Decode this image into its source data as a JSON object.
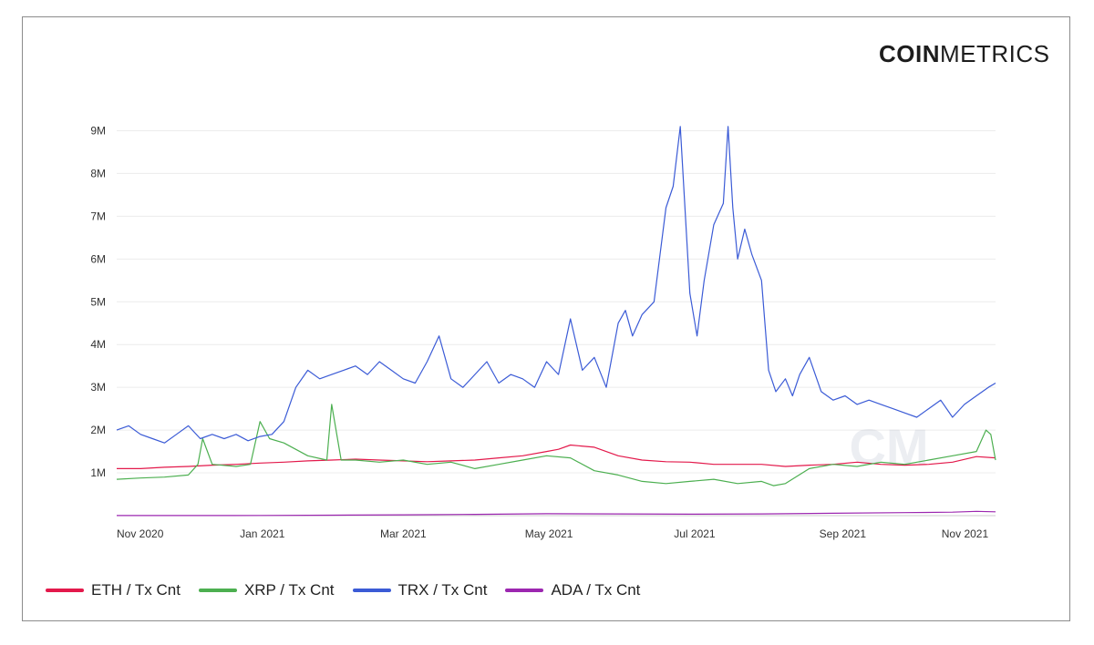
{
  "logo": {
    "bold": "COIN",
    "light": "METRICS"
  },
  "chart_data": {
    "type": "line",
    "title": "",
    "xlabel": "",
    "ylabel": "",
    "ylim": [
      0,
      9500000
    ],
    "y_ticks": [
      {
        "value": 1000000,
        "label": "1M"
      },
      {
        "value": 2000000,
        "label": "2M"
      },
      {
        "value": 3000000,
        "label": "3M"
      },
      {
        "value": 4000000,
        "label": "4M"
      },
      {
        "value": 5000000,
        "label": "5M"
      },
      {
        "value": 6000000,
        "label": "6M"
      },
      {
        "value": 7000000,
        "label": "7M"
      },
      {
        "value": 8000000,
        "label": "8M"
      },
      {
        "value": 9000000,
        "label": "9M"
      }
    ],
    "x_ticks": [
      "Nov 2020",
      "Jan 2021",
      "Mar 2021",
      "May 2021",
      "Jul 2021",
      "Sep 2021",
      "Nov 2021"
    ],
    "x_tick_days": [
      0,
      61,
      120,
      181,
      242,
      304,
      365
    ],
    "x_range_days": [
      0,
      368
    ],
    "series": [
      {
        "name": "ETH / Tx Cnt",
        "color": "#e3194b",
        "x_days": [
          0,
          10,
          20,
          30,
          40,
          50,
          60,
          70,
          80,
          90,
          100,
          110,
          120,
          130,
          140,
          150,
          160,
          170,
          180,
          185,
          190,
          200,
          210,
          220,
          230,
          240,
          250,
          260,
          270,
          280,
          290,
          300,
          310,
          320,
          330,
          340,
          350,
          360,
          368
        ],
        "values": [
          1100000,
          1100000,
          1130000,
          1150000,
          1180000,
          1200000,
          1230000,
          1250000,
          1280000,
          1300000,
          1320000,
          1300000,
          1280000,
          1260000,
          1280000,
          1300000,
          1350000,
          1400000,
          1500000,
          1550000,
          1650000,
          1600000,
          1400000,
          1300000,
          1260000,
          1250000,
          1200000,
          1200000,
          1200000,
          1150000,
          1180000,
          1200000,
          1250000,
          1200000,
          1180000,
          1200000,
          1250000,
          1380000,
          1350000
        ]
      },
      {
        "name": "XRP / Tx Cnt",
        "color": "#4caf50",
        "x_days": [
          0,
          10,
          20,
          30,
          34,
          36,
          40,
          50,
          56,
          60,
          64,
          70,
          80,
          88,
          90,
          94,
          100,
          110,
          120,
          130,
          140,
          150,
          160,
          170,
          180,
          190,
          200,
          210,
          220,
          230,
          240,
          250,
          260,
          270,
          275,
          280,
          290,
          300,
          310,
          320,
          330,
          340,
          350,
          360,
          364,
          366,
          368
        ],
        "values": [
          850000,
          880000,
          900000,
          950000,
          1200000,
          1800000,
          1200000,
          1150000,
          1200000,
          2200000,
          1800000,
          1700000,
          1400000,
          1300000,
          2600000,
          1300000,
          1300000,
          1250000,
          1300000,
          1200000,
          1250000,
          1100000,
          1200000,
          1300000,
          1400000,
          1350000,
          1050000,
          950000,
          800000,
          750000,
          800000,
          850000,
          750000,
          800000,
          700000,
          750000,
          1100000,
          1200000,
          1150000,
          1250000,
          1200000,
          1300000,
          1400000,
          1500000,
          2000000,
          1900000,
          1300000
        ]
      },
      {
        "name": "TRX / Tx Cnt",
        "color": "#3b5bd6",
        "x_days": [
          0,
          5,
          10,
          15,
          20,
          25,
          30,
          35,
          40,
          45,
          50,
          55,
          60,
          65,
          70,
          75,
          80,
          85,
          90,
          95,
          100,
          105,
          110,
          115,
          120,
          125,
          130,
          135,
          140,
          145,
          150,
          155,
          160,
          165,
          170,
          175,
          180,
          185,
          190,
          195,
          200,
          205,
          210,
          213,
          216,
          220,
          225,
          230,
          233,
          236,
          240,
          243,
          246,
          250,
          254,
          256,
          258,
          260,
          263,
          266,
          270,
          273,
          276,
          280,
          283,
          286,
          290,
          295,
          300,
          305,
          310,
          315,
          320,
          325,
          330,
          335,
          340,
          345,
          350,
          355,
          360,
          365,
          368
        ],
        "values": [
          2000000,
          2100000,
          1900000,
          1800000,
          1700000,
          1900000,
          2100000,
          1800000,
          1900000,
          1800000,
          1900000,
          1750000,
          1850000,
          1900000,
          2200000,
          3000000,
          3400000,
          3200000,
          3300000,
          3400000,
          3500000,
          3300000,
          3600000,
          3400000,
          3200000,
          3100000,
          3600000,
          4200000,
          3200000,
          3000000,
          3300000,
          3600000,
          3100000,
          3300000,
          3200000,
          3000000,
          3600000,
          3300000,
          4600000,
          3400000,
          3700000,
          3000000,
          4500000,
          4800000,
          4200000,
          4700000,
          5000000,
          7200000,
          7700000,
          9100000,
          5200000,
          4200000,
          5500000,
          6800000,
          7300000,
          9100000,
          7200000,
          6000000,
          6700000,
          6100000,
          5500000,
          3400000,
          2900000,
          3200000,
          2800000,
          3300000,
          3700000,
          2900000,
          2700000,
          2800000,
          2600000,
          2700000,
          2600000,
          2500000,
          2400000,
          2300000,
          2500000,
          2700000,
          2300000,
          2600000,
          2800000,
          3000000,
          3100000
        ]
      },
      {
        "name": "ADA / Tx Cnt",
        "color": "#9c27b0",
        "x_days": [
          0,
          30,
          60,
          90,
          120,
          150,
          180,
          210,
          240,
          270,
          300,
          330,
          350,
          360,
          368
        ],
        "values": [
          2000,
          2000,
          5000,
          10000,
          20000,
          30000,
          45000,
          40000,
          35000,
          40000,
          55000,
          70000,
          80000,
          100000,
          90000
        ]
      }
    ]
  },
  "legend": [
    {
      "label": "ETH / Tx Cnt",
      "color": "#e3194b"
    },
    {
      "label": "XRP / Tx Cnt",
      "color": "#4caf50"
    },
    {
      "label": "TRX / Tx Cnt",
      "color": "#3b5bd6"
    },
    {
      "label": "ADA / Tx Cnt",
      "color": "#9c27b0"
    }
  ]
}
